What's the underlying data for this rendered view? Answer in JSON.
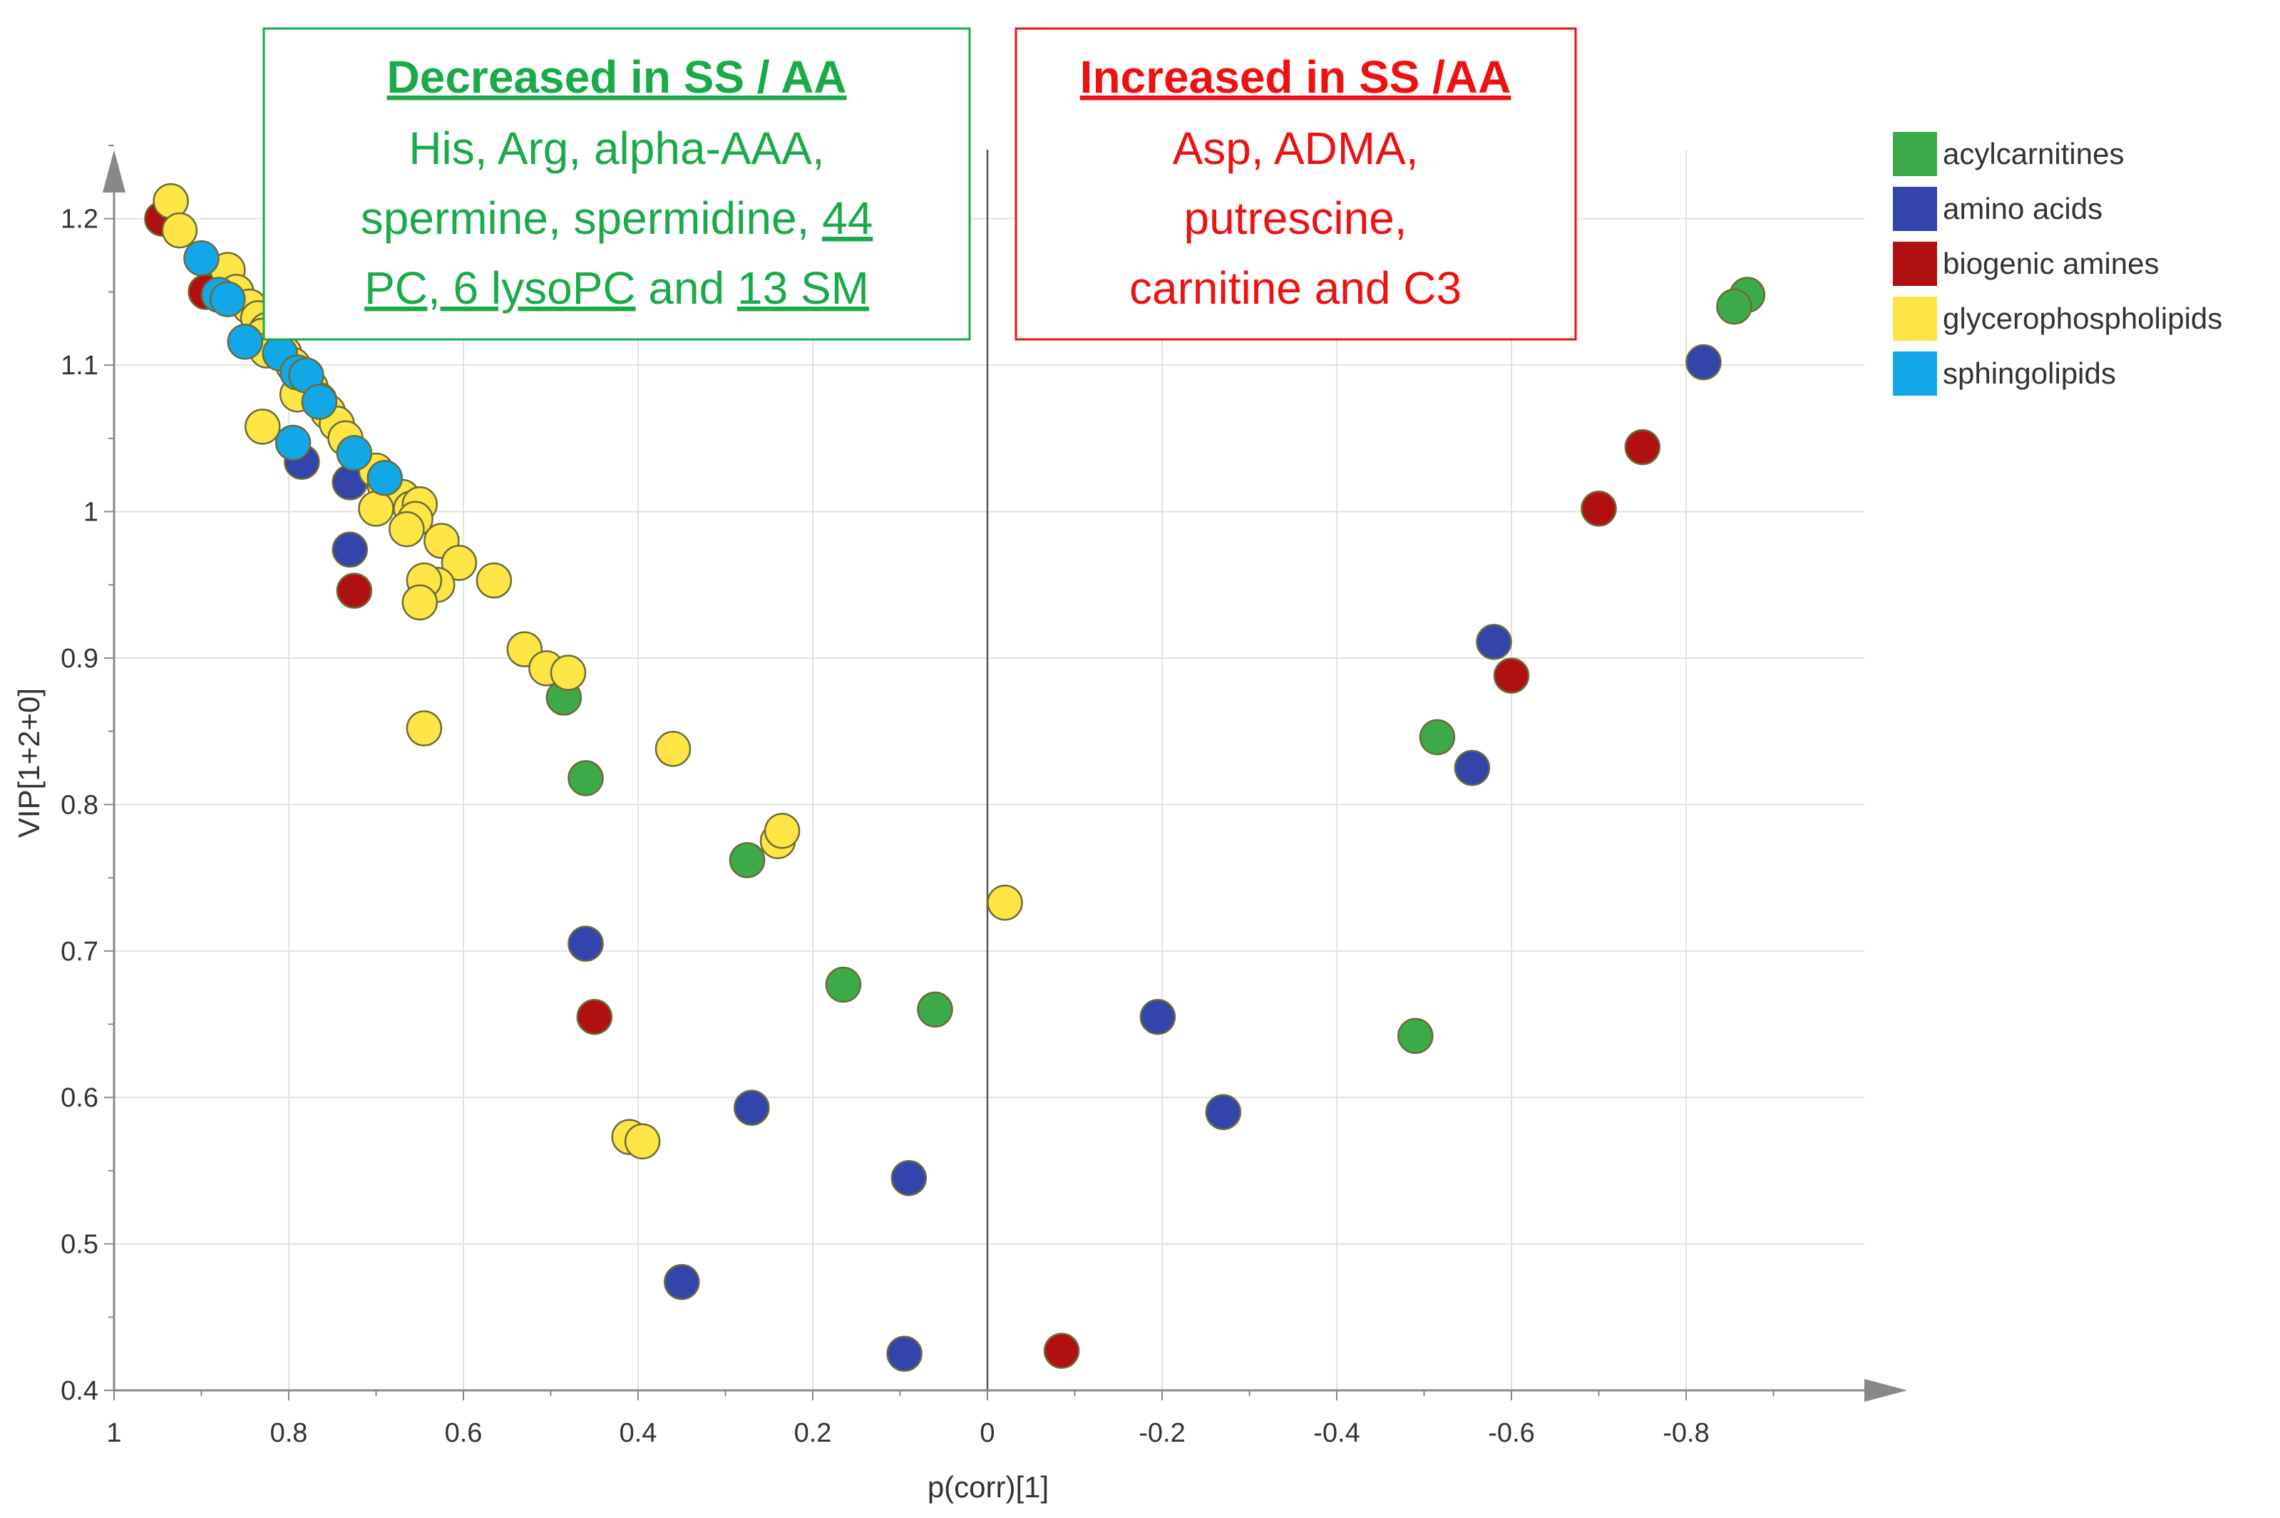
{
  "chart_data": {
    "type": "scatter",
    "xlabel": "p(corr)[1]",
    "ylabel": "VIP[1+2+0]",
    "xlim": [
      1,
      -1
    ],
    "ylim": [
      0.4,
      1.25
    ],
    "x_ticks": [
      "1",
      "0.8",
      "0.6",
      "0.4",
      "0.2",
      "0",
      "-0.2",
      "-0.4",
      "-0.6",
      "-0.8"
    ],
    "y_ticks": [
      "0.4",
      "0.5",
      "0.6",
      "0.7",
      "0.8",
      "0.9",
      "1",
      "1.1",
      "1.2"
    ],
    "grid": true,
    "legend_position": "top-right",
    "series": [
      {
        "name": "acylcarnitines",
        "color": "#3daa4a",
        "points": [
          [
            -0.87,
            1.148
          ],
          [
            -0.855,
            1.14
          ],
          [
            0.485,
            0.873
          ],
          [
            0.46,
            0.818
          ],
          [
            0.275,
            0.762
          ],
          [
            0.165,
            0.677
          ],
          [
            0.06,
            0.66
          ],
          [
            -0.515,
            0.846
          ],
          [
            -0.49,
            0.642
          ]
        ]
      },
      {
        "name": "amino acids",
        "color": "#3344aa",
        "points": [
          [
            0.785,
            1.034
          ],
          [
            0.73,
            1.02
          ],
          [
            0.73,
            0.974
          ],
          [
            0.46,
            0.705
          ],
          [
            0.27,
            0.593
          ],
          [
            0.09,
            0.545
          ],
          [
            0.35,
            0.474
          ],
          [
            0.095,
            0.425
          ],
          [
            -0.82,
            1.102
          ],
          [
            -0.58,
            0.911
          ],
          [
            -0.555,
            0.825
          ],
          [
            -0.195,
            0.655
          ],
          [
            -0.27,
            0.59
          ]
        ]
      },
      {
        "name": "biogenic amines",
        "color": "#b01010",
        "points": [
          [
            0.945,
            1.2
          ],
          [
            0.895,
            1.15
          ],
          [
            0.725,
            0.946
          ],
          [
            0.45,
            0.655
          ],
          [
            -0.085,
            0.427
          ],
          [
            -0.75,
            1.044
          ],
          [
            -0.7,
            1.002
          ],
          [
            -0.6,
            0.888
          ]
        ]
      },
      {
        "name": "glycerophospholipids",
        "color": "#fde545",
        "points": [
          [
            0.935,
            1.212
          ],
          [
            0.925,
            1.192
          ],
          [
            0.87,
            1.165
          ],
          [
            0.86,
            1.15
          ],
          [
            0.845,
            1.14
          ],
          [
            0.835,
            1.132
          ],
          [
            0.825,
            1.124
          ],
          [
            0.815,
            1.116
          ],
          [
            0.805,
            1.108
          ],
          [
            0.83,
            1.12
          ],
          [
            0.795,
            1.1
          ],
          [
            0.785,
            1.092
          ],
          [
            0.775,
            1.085
          ],
          [
            0.765,
            1.076
          ],
          [
            0.755,
            1.068
          ],
          [
            0.745,
            1.06
          ],
          [
            0.735,
            1.05
          ],
          [
            0.825,
            1.11
          ],
          [
            0.79,
            1.08
          ],
          [
            0.83,
            1.058
          ],
          [
            0.7,
            1.028
          ],
          [
            0.69,
            1.018
          ],
          [
            0.67,
            1.01
          ],
          [
            0.66,
            1.002
          ],
          [
            0.65,
            1.005
          ],
          [
            0.655,
            0.995
          ],
          [
            0.665,
            0.988
          ],
          [
            0.7,
            1.002
          ],
          [
            0.625,
            0.98
          ],
          [
            0.605,
            0.965
          ],
          [
            0.565,
            0.953
          ],
          [
            0.63,
            0.95
          ],
          [
            0.645,
            0.953
          ],
          [
            0.65,
            0.938
          ],
          [
            0.53,
            0.906
          ],
          [
            0.505,
            0.893
          ],
          [
            0.48,
            0.89
          ],
          [
            0.645,
            0.852
          ],
          [
            0.36,
            0.838
          ],
          [
            0.24,
            0.775
          ],
          [
            0.235,
            0.782
          ],
          [
            -0.02,
            0.733
          ],
          [
            0.41,
            0.573
          ],
          [
            0.395,
            0.57
          ]
        ]
      },
      {
        "name": "sphingolipids",
        "color": "#12a8e8",
        "points": [
          [
            0.9,
            1.173
          ],
          [
            0.88,
            1.148
          ],
          [
            0.87,
            1.145
          ],
          [
            0.85,
            1.116
          ],
          [
            0.81,
            1.108
          ],
          [
            0.79,
            1.095
          ],
          [
            0.78,
            1.093
          ],
          [
            0.765,
            1.075
          ],
          [
            0.795,
            1.047
          ],
          [
            0.725,
            1.04
          ],
          [
            0.69,
            1.023
          ]
        ]
      }
    ]
  },
  "annotations": {
    "decreased": {
      "title": "Decreased in SS / AA",
      "line1": "His, Arg, alpha-AAA,",
      "line2_a": "spermine, spermidine, ",
      "line2_b": "44",
      "line3_a": "PC, 6 lysoPC",
      "line3_b": " and ",
      "line3_c": "13 SM",
      "color": "#1aaa4a"
    },
    "increased": {
      "title": "Increased in SS /AA",
      "line1": "Asp, ADMA,",
      "line2": "putrescine,",
      "line3": "carnitine and C3",
      "color": "#ee1111"
    }
  }
}
